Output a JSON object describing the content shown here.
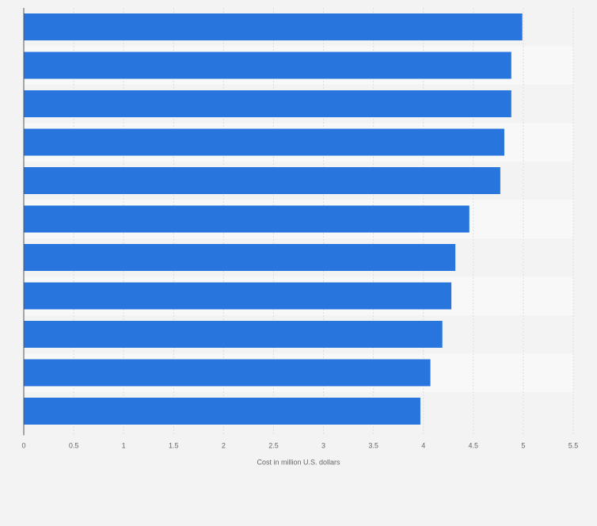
{
  "chart_data": {
    "type": "bar",
    "orientation": "horizontal",
    "title": "",
    "xlabel": "Cost in million U.S. dollars",
    "ylabel": "",
    "xlim": [
      0,
      5.5
    ],
    "x_ticks": [
      "0",
      "0.5",
      "1",
      "1.5",
      "2",
      "2.5",
      "3",
      "3.5",
      "4",
      "4.5",
      "5",
      "5.5"
    ],
    "tick_values": [
      0,
      0.5,
      1,
      1.5,
      2,
      2.5,
      3,
      3.5,
      4,
      4.5,
      5,
      5.5
    ],
    "values": [
      4.99,
      4.88,
      4.88,
      4.81,
      4.77,
      4.46,
      4.32,
      4.28,
      4.19,
      4.07,
      3.97
    ],
    "grid": true,
    "legend": "none",
    "bar_color": "#2876dd",
    "background_color": "#f3f3f3",
    "band_color": "#f8f8f8",
    "gridline_color": "#dddddd"
  }
}
